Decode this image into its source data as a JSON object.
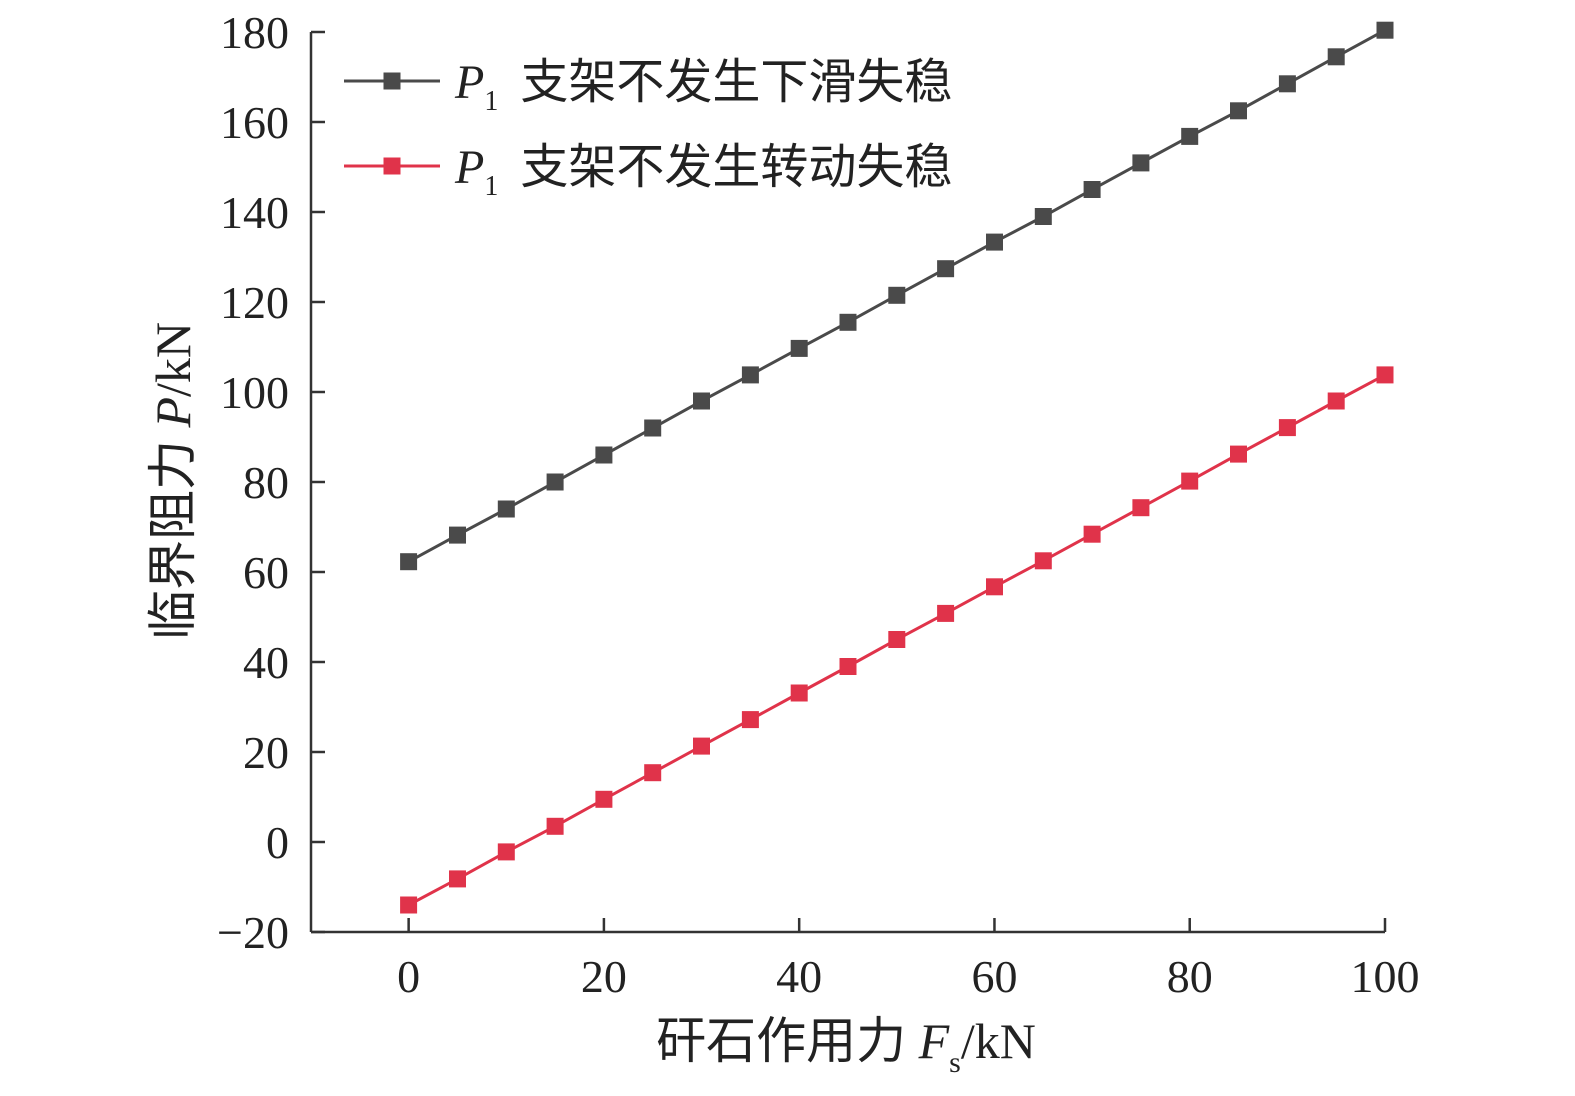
{
  "chart_data": {
    "type": "line",
    "x": [
      0,
      5,
      10,
      15,
      20,
      25,
      30,
      35,
      40,
      45,
      50,
      55,
      60,
      65,
      70,
      75,
      80,
      85,
      90,
      95,
      100
    ],
    "series": [
      {
        "name_var": "P",
        "name_sub": "1",
        "name_text": "支架不发生下滑失稳",
        "color": "#4a4a4a",
        "marker": "square",
        "values": [
          62.3,
          68.2,
          74.0,
          80.0,
          86.0,
          92.0,
          98.0,
          103.8,
          109.7,
          115.5,
          121.5,
          127.4,
          133.3,
          139.0,
          145.0,
          150.9,
          156.8,
          162.5,
          168.5,
          174.5,
          180.4
        ]
      },
      {
        "name_var": "P",
        "name_sub": "1",
        "name_text": "支架不发生转动失稳",
        "color": "#e0334a",
        "marker": "square",
        "values": [
          -14.0,
          -8.2,
          -2.2,
          3.5,
          9.5,
          15.4,
          21.3,
          27.2,
          33.1,
          39.0,
          45.0,
          50.8,
          56.7,
          62.5,
          68.4,
          74.3,
          80.2,
          86.2,
          92.1,
          98.0,
          103.8
        ]
      }
    ],
    "xlabel": {
      "text": "矸石作用力 ",
      "var": "F",
      "sub": "s",
      "unit": "/kN"
    },
    "ylabel": {
      "text": "临界阻力 ",
      "var": "P",
      "unit": "/kN"
    },
    "xlim": [
      -10,
      100
    ],
    "ylim": [
      -20,
      180
    ],
    "xticks": [
      0,
      20,
      40,
      60,
      80,
      100
    ],
    "yticks": [
      -20,
      0,
      20,
      40,
      60,
      80,
      100,
      120,
      140,
      160,
      180
    ],
    "xtick_labels": [
      "0",
      "20",
      "40",
      "60",
      "80",
      "100"
    ],
    "ytick_labels": [
      "−20",
      "0",
      "20",
      "40",
      "60",
      "80",
      "100",
      "120",
      "140",
      "160",
      "180"
    ],
    "grid": false,
    "legend_position": "top-left"
  }
}
